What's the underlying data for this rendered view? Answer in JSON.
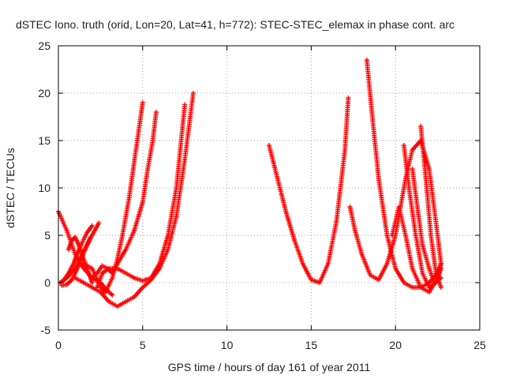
{
  "chart_data": {
    "type": "scatter",
    "title": "dSTEC Iono. truth (orid, Lon=20, Lat=41, h=772): STEC-STEC_elemax in phase cont. arc",
    "xlabel": "GPS time / hours of day 161 of year 2011",
    "ylabel": "dSTEC  / TECUs",
    "xlim": [
      0,
      25
    ],
    "ylim": [
      -5,
      25
    ],
    "xticks": [
      0,
      5,
      10,
      15,
      20,
      25
    ],
    "yticks": [
      -5,
      0,
      5,
      10,
      15,
      20,
      25
    ],
    "xtick_labels": [
      "0",
      "5",
      "10",
      "15",
      "20",
      "25"
    ],
    "ytick_labels": [
      "-5",
      "0",
      "5",
      "10",
      "15",
      "20",
      "25"
    ],
    "grid": true,
    "marker": "plus",
    "color": "#ff0000",
    "series": [
      {
        "x": [
          0.0,
          0.5,
          1.0,
          1.5,
          2.0,
          2.5,
          3.0,
          3.2
        ],
        "y": [
          7.5,
          5.5,
          3.0,
          1.5,
          0.5,
          0.0,
          -1.0,
          -1.3
        ]
      },
      {
        "x": [
          0.1,
          0.5,
          1.0,
          1.4,
          1.7,
          2.0,
          2.4
        ],
        "y": [
          0.0,
          0.5,
          1.5,
          3.0,
          4.0,
          5.0,
          6.3
        ]
      },
      {
        "x": [
          0.2,
          0.5,
          0.8,
          1.0,
          1.3,
          1.6,
          1.9
        ],
        "y": [
          -0.3,
          -0.2,
          0.3,
          1.0,
          2.2,
          3.5,
          4.8
        ]
      },
      {
        "x": [
          0.3,
          0.6,
          0.9,
          1.1,
          1.4,
          1.7,
          2.0
        ],
        "y": [
          0.2,
          1.0,
          2.0,
          3.0,
          4.2,
          5.3,
          6.0
        ]
      },
      {
        "x": [
          0.6,
          0.8,
          1.0,
          1.2,
          1.5,
          1.8,
          2.0
        ],
        "y": [
          3.5,
          4.5,
          4.8,
          4.0,
          2.5,
          1.0,
          0.0
        ]
      },
      {
        "x": [
          1.0,
          1.5,
          2.0,
          2.5,
          3.0,
          3.5,
          4.0,
          4.5,
          5.0,
          5.5,
          6.0,
          6.5,
          7.0,
          7.5,
          8.0
        ],
        "y": [
          0.5,
          0.0,
          -0.5,
          -1.0,
          -2.0,
          -2.5,
          -2.0,
          -1.5,
          -0.5,
          0.3,
          1.5,
          3.5,
          7.0,
          13.0,
          20.0
        ]
      },
      {
        "x": [
          2.0,
          2.3,
          2.6,
          2.9,
          3.2,
          3.5,
          4.0,
          4.5,
          5.0,
          5.3,
          5.6,
          5.8
        ],
        "y": [
          0.5,
          1.0,
          1.8,
          1.5,
          1.0,
          2.0,
          3.5,
          5.5,
          8.5,
          12.0,
          15.0,
          18.0
        ]
      },
      {
        "x": [
          1.5,
          2.0,
          2.5,
          2.8,
          3.2,
          3.5,
          3.8,
          4.2,
          4.6,
          5.0
        ],
        "y": [
          2.0,
          1.5,
          -0.5,
          -1.0,
          0.5,
          2.5,
          5.0,
          9.0,
          14.0,
          19.0
        ]
      },
      {
        "x": [
          2.3,
          2.6,
          3.0,
          3.5,
          4.0,
          4.5,
          5.0,
          5.5,
          6.0,
          6.5,
          7.0,
          7.5
        ],
        "y": [
          -0.5,
          1.0,
          1.5,
          1.5,
          1.0,
          0.5,
          0.2,
          0.5,
          2.0,
          5.0,
          10.0,
          18.8
        ]
      },
      {
        "x": [
          12.5,
          13.0,
          13.5,
          14.0,
          14.5,
          15.0,
          15.5,
          16.0,
          16.5,
          17.0,
          17.2
        ],
        "y": [
          14.5,
          11.0,
          7.5,
          4.5,
          2.0,
          0.3,
          0.0,
          2.0,
          6.5,
          14.0,
          19.5
        ]
      },
      {
        "x": [
          17.3,
          17.6,
          18.0,
          18.5,
          19.0,
          19.5,
          20.0,
          20.3,
          20.6,
          21.0,
          21.5,
          22.0,
          22.5,
          22.7
        ],
        "y": [
          8.0,
          5.5,
          3.0,
          0.8,
          0.3,
          2.0,
          5.0,
          8.0,
          11.0,
          14.0,
          15.0,
          12.0,
          5.0,
          2.0
        ]
      },
      {
        "x": [
          18.3,
          18.6,
          19.0,
          19.5,
          20.0,
          20.5,
          21.0,
          21.5,
          22.0,
          22.5,
          22.7
        ],
        "y": [
          23.5,
          18.0,
          11.0,
          5.0,
          1.5,
          0.0,
          -0.5,
          -0.5,
          0.0,
          1.0,
          2.0
        ]
      },
      {
        "x": [
          19.8,
          20.2,
          20.6,
          21.0,
          21.5,
          22.0,
          22.5,
          22.7
        ],
        "y": [
          5.0,
          8.0,
          5.0,
          1.5,
          -0.5,
          -1.0,
          0.5,
          2.0
        ]
      },
      {
        "x": [
          20.5,
          20.8,
          21.2,
          21.6,
          22.0,
          22.4,
          22.7
        ],
        "y": [
          14.5,
          10.0,
          5.0,
          1.0,
          -0.5,
          0.0,
          1.5
        ]
      },
      {
        "x": [
          21.5,
          21.8,
          22.1,
          22.4,
          22.7
        ],
        "y": [
          16.5,
          11.0,
          5.0,
          1.0,
          -0.5
        ]
      },
      {
        "x": [
          21.0,
          21.3,
          21.6,
          22.0,
          22.3,
          22.7
        ],
        "y": [
          12.0,
          8.0,
          4.0,
          1.5,
          0.0,
          0.5
        ]
      }
    ]
  }
}
